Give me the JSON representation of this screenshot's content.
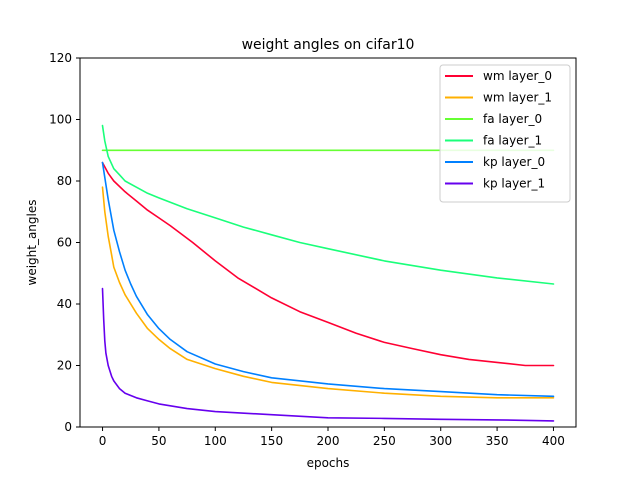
{
  "chart_data": {
    "type": "line",
    "title": "weight angles on cifar10",
    "xlabel": "epochs",
    "ylabel": "weight_angles",
    "xlim": [
      -20,
      420
    ],
    "ylim": [
      0,
      120
    ],
    "xticks": [
      0,
      50,
      100,
      150,
      200,
      250,
      300,
      350,
      400
    ],
    "yticks": [
      0,
      20,
      40,
      60,
      80,
      100,
      120
    ],
    "grid": false,
    "legend_position": "top-right",
    "series": [
      {
        "name": "wm layer_0",
        "color": "#ff0033",
        "x": [
          0,
          5,
          10,
          20,
          30,
          40,
          50,
          60,
          80,
          100,
          120,
          150,
          175,
          200,
          225,
          250,
          275,
          300,
          325,
          350,
          375,
          400
        ],
        "y": [
          86,
          82.5,
          80,
          76.5,
          73.5,
          70.5,
          68,
          65.5,
          60,
          54,
          48.5,
          42,
          37.5,
          34,
          30.5,
          27.5,
          25.5,
          23.5,
          22,
          21,
          20,
          20
        ]
      },
      {
        "name": "wm layer_1",
        "color": "#ffb000",
        "x": [
          0,
          2,
          5,
          8,
          10,
          15,
          20,
          30,
          40,
          50,
          60,
          75,
          100,
          125,
          150,
          200,
          250,
          300,
          350,
          400
        ],
        "y": [
          78,
          70,
          62,
          56,
          52,
          47,
          43,
          37,
          32,
          28.5,
          25.5,
          22,
          19,
          16.5,
          14.5,
          12.5,
          11,
          10,
          9.5,
          9.5
        ]
      },
      {
        "name": "fa layer_0",
        "color": "#66ff33",
        "x": [
          0,
          50,
          100,
          150,
          200,
          250,
          300,
          350,
          400
        ],
        "y": [
          90,
          90,
          90,
          90,
          90,
          90,
          90,
          90,
          90
        ]
      },
      {
        "name": "fa layer_1",
        "color": "#1aff7a",
        "x": [
          0,
          2,
          5,
          10,
          15,
          20,
          30,
          40,
          50,
          75,
          100,
          125,
          150,
          175,
          200,
          250,
          300,
          350,
          400
        ],
        "y": [
          98,
          93,
          88,
          84,
          82,
          80,
          78,
          76,
          74.5,
          71,
          68,
          65,
          62.5,
          60,
          58,
          54,
          51,
          48.5,
          46.5
        ]
      },
      {
        "name": "kp layer_0",
        "color": "#0080ff",
        "x": [
          0,
          5,
          10,
          15,
          20,
          25,
          30,
          40,
          50,
          60,
          75,
          100,
          125,
          150,
          200,
          250,
          300,
          350,
          400
        ],
        "y": [
          86,
          74,
          64,
          57,
          51,
          46.5,
          42.5,
          36.5,
          32,
          28.5,
          24.5,
          20.5,
          18,
          16,
          14,
          12.5,
          11.5,
          10.5,
          10
        ]
      },
      {
        "name": "kp layer_1",
        "color": "#6600ee",
        "x": [
          0,
          1,
          2,
          3,
          5,
          8,
          10,
          15,
          20,
          30,
          40,
          50,
          75,
          100,
          150,
          200,
          250,
          300,
          350,
          400
        ],
        "y": [
          45,
          35,
          28,
          24,
          20,
          16.5,
          15,
          12.5,
          11,
          9.5,
          8.5,
          7.5,
          6,
          5,
          4,
          3,
          2.8,
          2.5,
          2.3,
          2
        ]
      }
    ]
  }
}
